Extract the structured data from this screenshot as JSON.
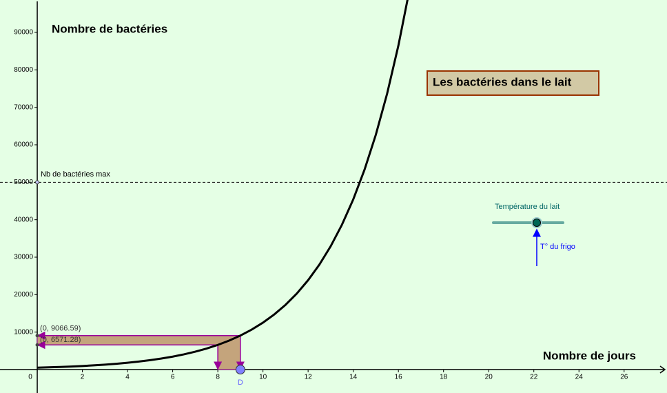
{
  "chart_data": {
    "type": "line",
    "title": "Les bactéries dans le lait",
    "x_label": "Nombre de jours",
    "y_label": "Nombre de bactéries",
    "x": [
      0,
      0.5,
      1,
      1.5,
      2,
      2.5,
      3,
      3.5,
      4,
      4.5,
      5,
      5.5,
      6,
      6.5,
      7,
      7.5,
      8,
      8.5,
      9,
      9.5,
      10,
      10.5,
      11,
      11.5,
      12,
      12.5,
      13,
      13.5,
      14,
      14.5,
      15,
      15.5,
      16,
      16.5
    ],
    "series": [
      {
        "color": "#000000",
        "values": [
          500,
          587,
          690,
          811,
          952,
          1119,
          1314,
          1544,
          1813,
          2130,
          2503,
          2940,
          3454,
          4057,
          4766,
          5599,
          6577,
          7726,
          9076,
          10661,
          12524,
          14713,
          17284,
          20304,
          23851,
          28019,
          32915,
          38667,
          45423,
          53360,
          62684,
          73637,
          86503,
          101618
        ]
      }
    ],
    "xlim": [
      -1.65,
      27.9
    ],
    "ylim": [
      -6258,
      98650
    ],
    "xticks": [
      0,
      2,
      4,
      6,
      8,
      10,
      12,
      14,
      16,
      18,
      20,
      22,
      24,
      26
    ],
    "yticks": [
      10000,
      20000,
      30000,
      40000,
      50000,
      60000,
      70000,
      80000,
      90000
    ],
    "max_line": {
      "label": "Nb de bactéries max",
      "value": 50000
    },
    "readings": [
      {
        "x": 9,
        "y": 9066.59,
        "label": "(0, 9066.59)"
      },
      {
        "x": 8,
        "y": 6571.28,
        "label": "(0, 6571.28)"
      }
    ],
    "point": {
      "name": "D",
      "x": 9
    },
    "slider": {
      "label": "Température du lait",
      "note": "T° du frigo"
    }
  }
}
